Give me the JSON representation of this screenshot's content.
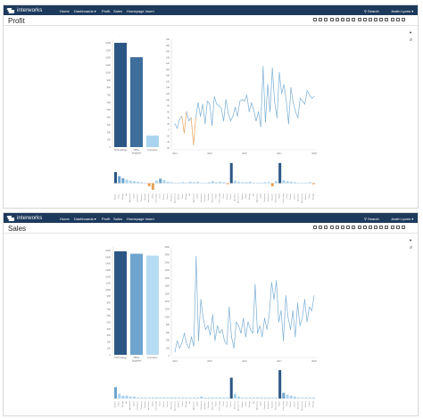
{
  "app": {
    "logo_text": "interworks"
  },
  "nav": {
    "items": [
      "Home",
      "Dashboards ▾",
      "Profit",
      "Sales",
      "Homepage Insert"
    ],
    "search_label": "Search",
    "user_label": "Justin Lyons ▾"
  },
  "toolbar": {
    "icons": [
      "fit-width-icon",
      "refresh-icon",
      "undo-icon",
      "bookmark-icon",
      "revert-icon",
      "redo-icon",
      "pause-icon",
      "share-icon",
      "comment-icon",
      "download-icon",
      "print-icon",
      "subscribe-icon",
      "fullscreen-icon",
      "settings-icon",
      "lock-icon",
      "clear-icon",
      "edit-icon"
    ]
  },
  "panels": [
    {
      "title": "Profit",
      "chart_data": [
        {
          "type": "bar",
          "categories": [
            "Technology",
            "Office Supplies",
            "Furniture"
          ],
          "values": [
            1450,
            1250,
            160
          ],
          "ylim": [
            -50,
            1500
          ],
          "yticks": [
            "1400",
            "1300",
            "1200",
            "1100",
            "1000",
            "900",
            "800",
            "700",
            "600",
            "500",
            "400",
            "300",
            "200",
            "100",
            "0"
          ],
          "colors": [
            "#2c5784",
            "#3d6e9c",
            "#a9d3ee"
          ]
        },
        {
          "type": "line",
          "x_ticks": [
            "2014",
            "2015",
            "2016",
            "2017",
            "2018"
          ],
          "y_ticks": [
            "300",
            "280",
            "260",
            "240",
            "220",
            "200",
            "180",
            "160",
            "140",
            "120",
            "100",
            "80",
            "60",
            "40",
            "20",
            "0",
            "-20",
            "-40",
            "-60"
          ],
          "ylim": [
            -60,
            300
          ],
          "values": [
            20,
            5,
            35,
            45,
            -10,
            60,
            30,
            40,
            -50,
            40,
            90,
            45,
            85,
            20,
            95,
            85,
            15,
            110,
            85,
            80,
            70,
            30,
            100,
            55,
            30,
            45,
            75,
            45,
            95,
            100,
            95,
            115,
            60,
            90,
            65,
            30,
            60,
            10,
            210,
            25,
            150,
            60,
            205,
            90,
            40,
            190,
            120,
            150,
            95,
            20,
            140,
            90,
            60,
            40,
            105,
            95,
            85,
            130,
            115,
            105,
            110
          ],
          "negative_color": "#e7a055",
          "line_color": "#79aed3"
        },
        {
          "type": "bar",
          "categories": [
            "Binders",
            "Paper",
            "Storage",
            "Art",
            "Appliances",
            "Labels",
            "Envelopes",
            "Fasteners",
            "Supplies",
            "Bookcases",
            "Tables",
            "Furnishings",
            "Chairs",
            "Phones",
            "Copiers",
            "Machines",
            "Accessories",
            "Binders",
            "Paper",
            "Storage",
            "Art",
            "Appliances",
            "Labels",
            "Envelopes",
            "Fasteners",
            "Supplies",
            "Bookcases",
            "Tables",
            "Furnishings",
            "Chairs",
            "Phones",
            "Copiers",
            "Machines",
            "Accessories",
            "Binders",
            "Paper",
            "Storage",
            "Art",
            "Appliances",
            "Labels",
            "Envelopes",
            "Fasteners",
            "Supplies",
            "Bookcases",
            "Tables",
            "Furnishings",
            "Chairs",
            "Phones",
            "Copiers",
            "Machines",
            "Accessories",
            "Binders",
            "Paper",
            "Storage"
          ],
          "values": [
            22,
            14,
            10,
            7,
            5,
            4,
            3,
            2,
            1,
            -6,
            -13,
            5,
            9,
            6,
            3,
            2,
            1,
            1,
            2,
            1,
            3,
            2,
            3,
            1,
            1,
            2,
            4,
            2,
            3,
            2,
            -2,
            40,
            5,
            3,
            2,
            2,
            3,
            1,
            1,
            1,
            2,
            2,
            -6,
            4,
            40,
            6,
            4,
            3,
            2,
            1,
            1,
            1,
            2,
            -2
          ],
          "ylim": [
            -15,
            45
          ]
        }
      ]
    },
    {
      "title": "Sales",
      "chart_data": [
        {
          "type": "bar",
          "categories": [
            "Technology",
            "Office Supplies",
            "Furniture"
          ],
          "values": [
            1680,
            1640,
            1610
          ],
          "ylim": [
            0,
            1750
          ],
          "yticks": [
            "1600",
            "1500",
            "1400",
            "1300",
            "1200",
            "1100",
            "1000",
            "900",
            "800",
            "700",
            "600",
            "500",
            "400",
            "300",
            "200",
            "100",
            "0"
          ],
          "colors": [
            "#2c5784",
            "#6ea4cf",
            "#b5dcf2"
          ]
        },
        {
          "type": "line",
          "x_ticks": [
            "2014",
            "2015",
            "2016",
            "2017",
            "2018"
          ],
          "y_ticks": [
            "2800",
            "2600",
            "2400",
            "2200",
            "2000",
            "1800",
            "1600",
            "1400",
            "1200",
            "1000",
            "800",
            "600",
            "400",
            "200",
            "0"
          ],
          "ylim": [
            0,
            2900
          ],
          "values": [
            100,
            400,
            200,
            350,
            600,
            300,
            200,
            500,
            250,
            2650,
            400,
            1500,
            1000,
            700,
            800,
            550,
            1100,
            400,
            800,
            600,
            700,
            400,
            300,
            1300,
            500,
            200,
            900,
            800,
            600,
            1000,
            500,
            900,
            700,
            600,
            1900,
            600,
            800,
            500,
            1000,
            700,
            1100,
            1950,
            1500,
            2000,
            900,
            1200,
            400,
            1600,
            1000,
            700,
            1200,
            500,
            1400,
            800,
            1000,
            1500,
            900,
            1300,
            1200,
            1600
          ],
          "line_color": "#79aed3"
        },
        {
          "type": "bar",
          "categories": [
            "Binders",
            "Paper",
            "Storage",
            "Art",
            "Appliances",
            "Labels",
            "Envelopes",
            "Fasteners",
            "Supplies",
            "Bookcases",
            "Tables",
            "Furnishings",
            "Chairs",
            "Phones",
            "Copiers",
            "Machines",
            "Accessories",
            "Binders",
            "Paper",
            "Storage",
            "Art",
            "Appliances",
            "Labels",
            "Envelopes",
            "Fasteners",
            "Supplies",
            "Bookcases",
            "Tables",
            "Furnishings",
            "Chairs",
            "Phones",
            "Copiers",
            "Machines",
            "Accessories",
            "Binders",
            "Paper",
            "Storage",
            "Art",
            "Appliances",
            "Labels",
            "Envelopes",
            "Fasteners",
            "Supplies",
            "Bookcases",
            "Tables",
            "Furnishings",
            "Chairs",
            "Phones",
            "Copiers",
            "Machines",
            "Accessories",
            "Binders",
            "Paper",
            "Storage"
          ],
          "values": [
            12,
            5,
            3,
            3,
            2,
            2,
            1,
            1,
            1,
            1,
            1,
            1,
            1,
            1,
            1,
            1,
            1,
            1,
            1,
            1,
            1,
            1,
            1,
            2,
            1,
            1,
            1,
            1,
            1,
            1,
            1,
            22,
            5,
            2,
            1,
            1,
            1,
            1,
            1,
            1,
            1,
            1,
            1,
            1,
            30,
            6,
            4,
            3,
            2,
            1,
            1,
            1,
            1,
            1
          ],
          "ylim": [
            0,
            32
          ]
        }
      ]
    }
  ],
  "colors": {
    "nav": "#1d3a5c",
    "dark": "#2c5784",
    "mid": "#6ea4cf",
    "light": "#a9d3ee",
    "orange": "#e7a055"
  }
}
